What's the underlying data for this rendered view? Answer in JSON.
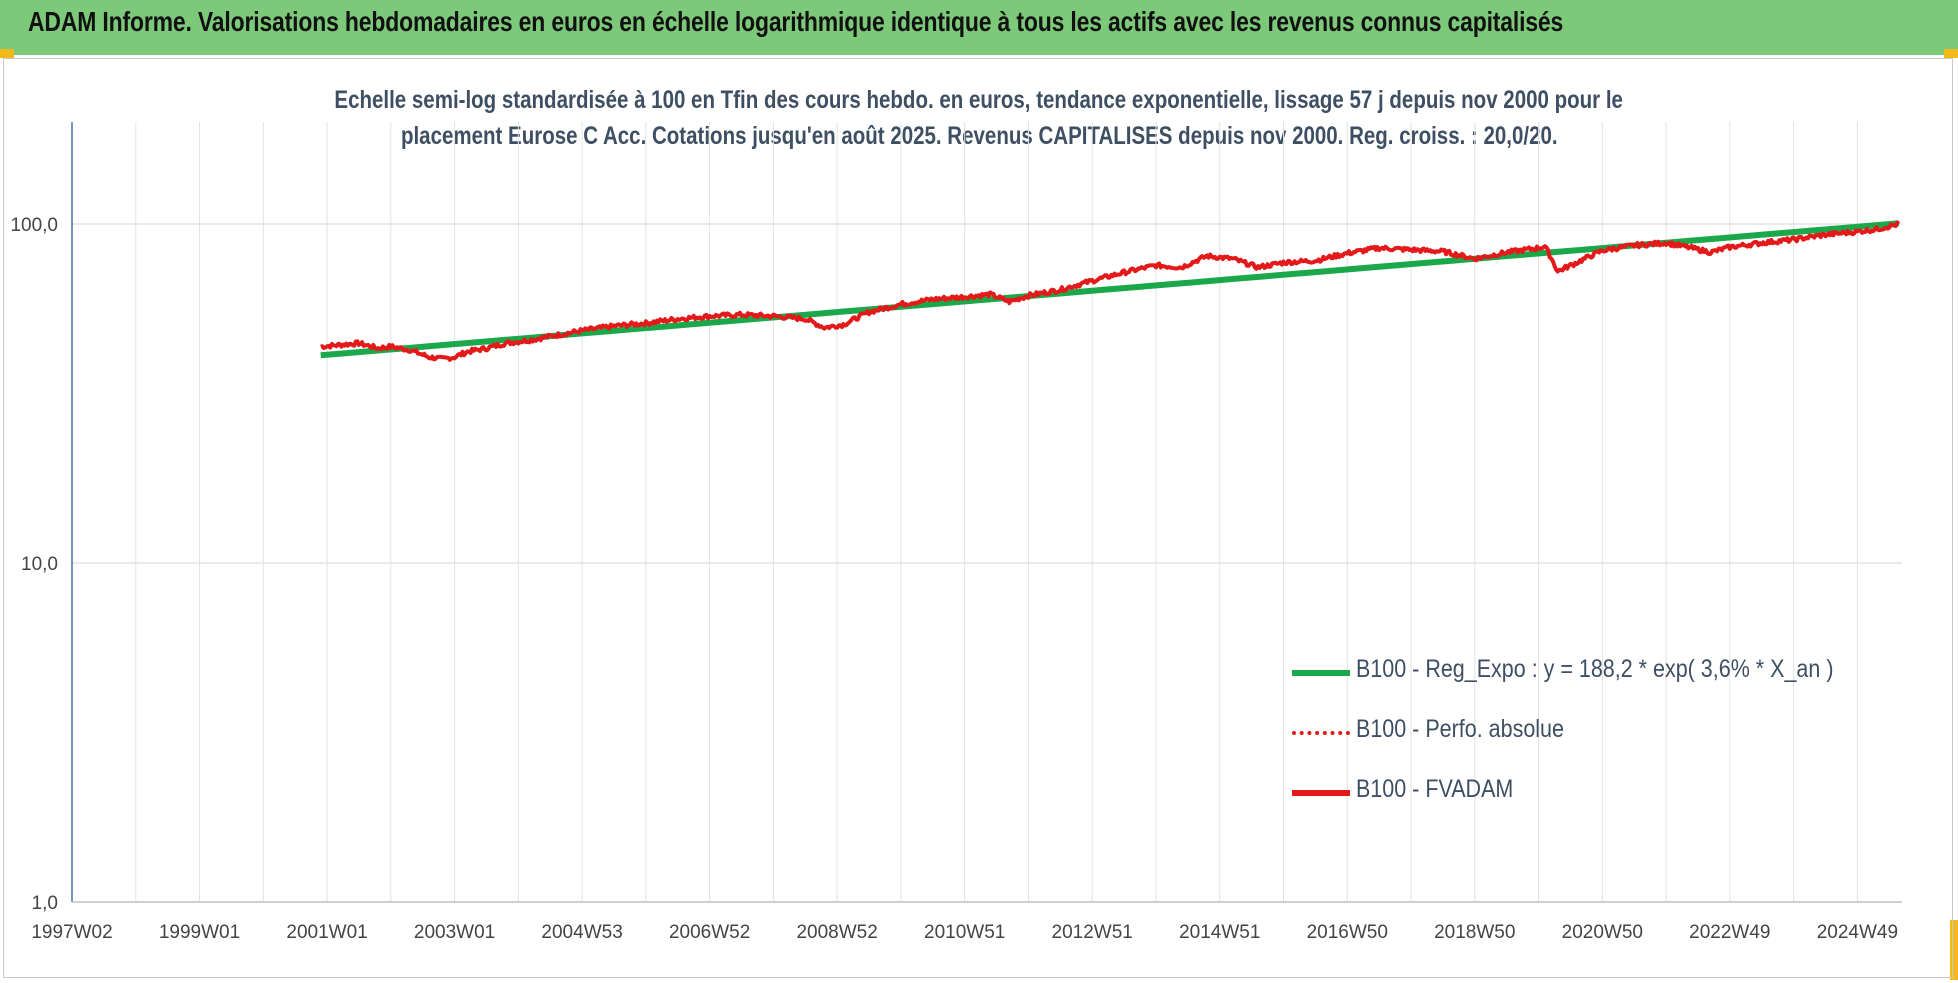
{
  "header": {
    "title": "ADAM Informe. Valorisations hebdomadaires en euros en échelle logarithmique identique à tous les actifs avec les revenus connus capitalisés"
  },
  "colors": {
    "banner": "#7dc97a",
    "corner": "#f2b81c",
    "regression": "#1aa84a",
    "fvadam": "#e41a1a",
    "perfo": "#e41a1a",
    "grid": "#e2e2e2",
    "axis": "#4a6fa5"
  },
  "chart_data": {
    "type": "line",
    "title_line1": "Echelle semi-log standardisée à 100 en Tfin des cours hebdo. en euros, tendance exponentielle, lissage 57 j depuis nov 2000 pour le",
    "title_line2": "placement Eurose C Acc. Cotations jusqu'en août 2025. Revenus CAPITALISES depuis nov 2000. Reg. croiss. : 20,0/20.",
    "y_scale": "log",
    "ylim": [
      1,
      200
    ],
    "y_ticks": [
      {
        "value": 1,
        "label": "1,0"
      },
      {
        "value": 10,
        "label": "10,0"
      },
      {
        "value": 100,
        "label": "100,0"
      }
    ],
    "xlim": [
      1997.0,
      2025.7
    ],
    "x_ticks": [
      {
        "value": 1997.0,
        "label": "1997W02"
      },
      {
        "value": 1999.0,
        "label": "1999W01"
      },
      {
        "value": 2001.0,
        "label": "2001W01"
      },
      {
        "value": 2003.0,
        "label": "2003W01"
      },
      {
        "value": 2005.0,
        "label": "2004W53"
      },
      {
        "value": 2007.0,
        "label": "2006W52"
      },
      {
        "value": 2009.0,
        "label": "2008W52"
      },
      {
        "value": 2011.0,
        "label": "2010W51"
      },
      {
        "value": 2013.0,
        "label": "2012W51"
      },
      {
        "value": 2015.0,
        "label": "2014W51"
      },
      {
        "value": 2017.0,
        "label": "2016W50"
      },
      {
        "value": 2019.0,
        "label": "2018W50"
      },
      {
        "value": 2021.0,
        "label": "2020W50"
      },
      {
        "value": 2023.0,
        "label": "2022W49"
      },
      {
        "value": 2025.0,
        "label": "2024W49"
      }
    ],
    "grid": true,
    "legend_position": "bottom-right",
    "series": [
      {
        "name": "B100 - Reg_Expo : y = 188,2 * exp( 3,6% *  X_an )",
        "style": "solid-thick",
        "x": [
          2000.9,
          2025.65
        ],
        "y": [
          41.0,
          100.5
        ]
      },
      {
        "name": "B100 - Perfo. absolue",
        "style": "dotted",
        "x": [],
        "y": []
      },
      {
        "name": "B100 - FVADAM",
        "style": "solid",
        "x": [
          2000.9,
          2001.2,
          2001.5,
          2001.8,
          2002.0,
          2002.3,
          2002.6,
          2002.8,
          2003.0,
          2003.2,
          2003.5,
          2003.8,
          2004.2,
          2004.6,
          2005.0,
          2005.5,
          2006.0,
          2006.5,
          2007.0,
          2007.5,
          2008.0,
          2008.5,
          2008.8,
          2009.1,
          2009.5,
          2010.0,
          2010.5,
          2011.0,
          2011.4,
          2011.7,
          2012.0,
          2012.5,
          2013.0,
          2013.5,
          2014.0,
          2014.4,
          2014.8,
          2015.2,
          2015.6,
          2016.0,
          2016.5,
          2017.0,
          2017.5,
          2018.0,
          2018.5,
          2019.0,
          2019.5,
          2020.0,
          2020.1,
          2020.3,
          2020.6,
          2021.0,
          2021.5,
          2022.0,
          2022.4,
          2022.7,
          2023.0,
          2023.5,
          2024.0,
          2024.5,
          2025.0,
          2025.3,
          2025.65
        ],
        "y": [
          43.5,
          44.0,
          44.5,
          43.0,
          43.5,
          42.5,
          40.5,
          40.0,
          40.5,
          42.0,
          43.0,
          44.5,
          45.5,
          47.0,
          48.5,
          50.0,
          51.0,
          52.5,
          53.5,
          54.0,
          53.5,
          52.5,
          49.5,
          50.5,
          55.0,
          58.0,
          60.0,
          61.0,
          62.0,
          59.0,
          61.5,
          64.0,
          68.0,
          72.0,
          75.5,
          74.5,
          80.5,
          79.0,
          74.5,
          77.0,
          78.0,
          82.0,
          85.0,
          84.0,
          83.0,
          79.0,
          82.5,
          85.0,
          86.0,
          72.5,
          77.0,
          83.5,
          86.5,
          88.0,
          85.0,
          82.5,
          85.5,
          88.0,
          90.0,
          93.0,
          95.0,
          96.5,
          100.0
        ]
      }
    ]
  },
  "legend": [
    {
      "label": "B100 - Reg_Expo : y = 188,2 * exp( 3,6% *  X_an )"
    },
    {
      "label": "B100 - Perfo. absolue"
    },
    {
      "label": "B100 - FVADAM"
    }
  ]
}
